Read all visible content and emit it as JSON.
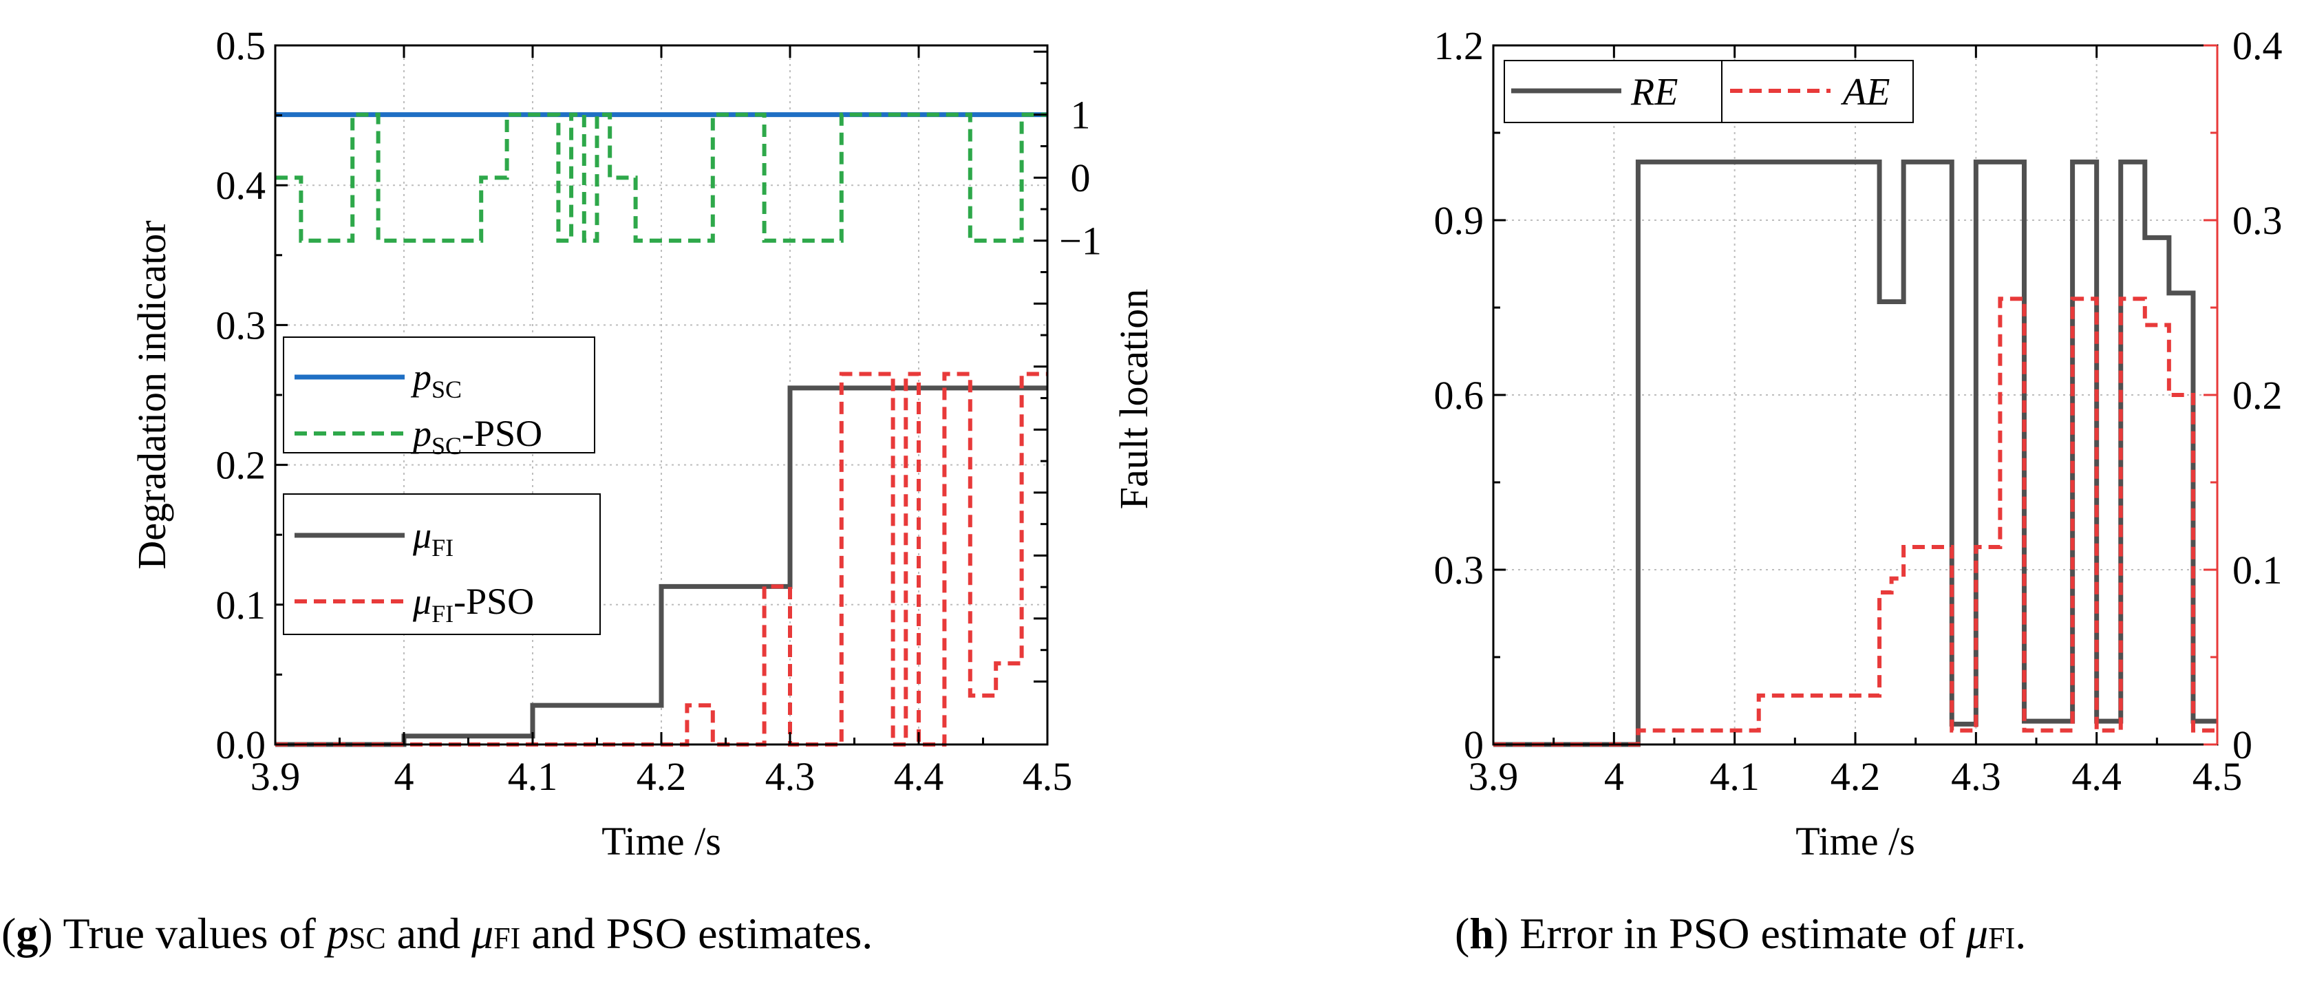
{
  "chart_data": [
    {
      "id": "g",
      "type": "line",
      "caption": {
        "letter": "g",
        "text_parts": [
          ") True values of ",
          "p",
          "SC",
          " and ",
          "μ",
          "FI",
          " and PSO estimates."
        ]
      },
      "xlabel": "Time /s",
      "ylabel_left": "Degradation indicator",
      "ylabel_right": "Fault location",
      "xlim": [
        3.9,
        4.5
      ],
      "ylim_left": [
        0,
        0.5
      ],
      "ylim_right": [
        -9,
        2.1
      ],
      "x_ticks": [
        "3.9",
        "4",
        "4.1",
        "4.2",
        "4.3",
        "4.4",
        "4.5"
      ],
      "y_ticks_left": [
        "0.0",
        "0.1",
        "0.2",
        "0.3",
        "0.4",
        "0.5"
      ],
      "y_ticks_right": [
        "1",
        "0",
        "−1"
      ],
      "y_ticks_right_values": [
        1,
        0,
        -1
      ],
      "grid": true,
      "legend": [
        {
          "label": "p",
          "sub": "SC",
          "suffix": "",
          "color": "#1f6fc4",
          "dash": "solid"
        },
        {
          "label": "p",
          "sub": "SC",
          "suffix": "-PSO",
          "color": "#2ea84a",
          "dash": "dashed"
        },
        {
          "label": "μ",
          "sub": "FI",
          "suffix": "",
          "color": "#505050",
          "dash": "solid"
        },
        {
          "label": "μ",
          "sub": "FI",
          "suffix": "-PSO",
          "color": "#e83a3a",
          "dash": "dashed"
        }
      ],
      "series": [
        {
          "name": "pSC",
          "axis": "right",
          "color": "#1f6fc4",
          "dash": "solid",
          "steps": [
            [
              3.9,
              1
            ],
            [
              4.5,
              1
            ]
          ]
        },
        {
          "name": "pSC-PSO",
          "axis": "right",
          "color": "#2ea84a",
          "dash": "dashed",
          "steps": [
            [
              3.9,
              0
            ],
            [
              3.92,
              -1
            ],
            [
              3.96,
              1
            ],
            [
              3.98,
              -1
            ],
            [
              4.06,
              0
            ],
            [
              4.08,
              1
            ],
            [
              4.12,
              -1
            ],
            [
              4.13,
              1
            ],
            [
              4.14,
              -1
            ],
            [
              4.15,
              1
            ],
            [
              4.16,
              0
            ],
            [
              4.18,
              -1
            ],
            [
              4.24,
              1
            ],
            [
              4.28,
              -1
            ],
            [
              4.34,
              1
            ],
            [
              4.44,
              -1
            ],
            [
              4.48,
              1
            ],
            [
              4.5,
              1
            ]
          ]
        },
        {
          "name": "μFI",
          "axis": "left",
          "color": "#505050",
          "dash": "solid",
          "steps": [
            [
              3.9,
              0
            ],
            [
              4.0,
              0.006
            ],
            [
              4.1,
              0.028
            ],
            [
              4.2,
              0.113
            ],
            [
              4.3,
              0.255
            ],
            [
              4.5,
              0.255
            ]
          ]
        },
        {
          "name": "μFI-PSO",
          "axis": "left",
          "color": "#e83a3a",
          "dash": "dashed",
          "steps": [
            [
              3.9,
              0
            ],
            [
              4.22,
              0.028
            ],
            [
              4.24,
              0
            ],
            [
              4.28,
              0.113
            ],
            [
              4.3,
              0
            ],
            [
              4.34,
              0.265
            ],
            [
              4.38,
              0
            ],
            [
              4.39,
              0.265
            ],
            [
              4.4,
              0
            ],
            [
              4.42,
              0.265
            ],
            [
              4.44,
              0.035
            ],
            [
              4.46,
              0.058
            ],
            [
              4.48,
              0.265
            ],
            [
              4.5,
              0.265
            ]
          ]
        }
      ]
    },
    {
      "id": "h",
      "type": "line",
      "caption": {
        "letter": "h",
        "text_parts": [
          ") Error in PSO estimate of ",
          "μ",
          "FI",
          "."
        ]
      },
      "xlabel": "Time /s",
      "xlim": [
        3.9,
        4.5
      ],
      "ylim_left": [
        0,
        1.2
      ],
      "ylim_right": [
        0,
        0.4
      ],
      "x_ticks": [
        "3.9",
        "4",
        "4.1",
        "4.2",
        "4.3",
        "4.4",
        "4.5"
      ],
      "y_ticks_left": [
        "0",
        "0.3",
        "0.6",
        "0.9",
        "1.2"
      ],
      "y_ticks_right": [
        "0",
        "0.1",
        "0.2",
        "0.3",
        "0.4"
      ],
      "grid": true,
      "legend": [
        {
          "label": "RE",
          "color": "#505050",
          "dash": "solid"
        },
        {
          "label": "AE",
          "color": "#e83a3a",
          "dash": "dashed"
        }
      ],
      "series": [
        {
          "name": "RE",
          "axis": "left",
          "color": "#505050",
          "dash": "solid",
          "steps": [
            [
              3.9,
              0
            ],
            [
              4.02,
              1.0
            ],
            [
              4.22,
              0.76
            ],
            [
              4.24,
              1.0
            ],
            [
              4.28,
              0.035
            ],
            [
              4.3,
              1.0
            ],
            [
              4.34,
              0.04
            ],
            [
              4.38,
              1.0
            ],
            [
              4.4,
              0.04
            ],
            [
              4.42,
              1.0
            ],
            [
              4.44,
              0.87
            ],
            [
              4.46,
              0.775
            ],
            [
              4.48,
              0.04
            ],
            [
              4.5,
              0.04
            ]
          ]
        },
        {
          "name": "AE",
          "axis": "right",
          "color": "#e83a3a",
          "dash": "dashed",
          "steps": [
            [
              3.9,
              0
            ],
            [
              4.02,
              0.008
            ],
            [
              4.12,
              0.028
            ],
            [
              4.22,
              0.087
            ],
            [
              4.23,
              0.095
            ],
            [
              4.24,
              0.113
            ],
            [
              4.28,
              0.008
            ],
            [
              4.3,
              0.113
            ],
            [
              4.32,
              0.255
            ],
            [
              4.34,
              0.008
            ],
            [
              4.38,
              0.255
            ],
            [
              4.4,
              0.008
            ],
            [
              4.42,
              0.255
            ],
            [
              4.44,
              0.24
            ],
            [
              4.46,
              0.2
            ],
            [
              4.48,
              0.008
            ],
            [
              4.5,
              0.008
            ]
          ]
        }
      ]
    }
  ]
}
